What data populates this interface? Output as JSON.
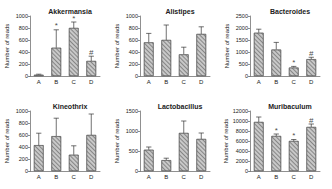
{
  "chart_data": [
    {
      "type": "bar",
      "title": "Akkermansia",
      "ylabel": "Number of reads",
      "categories": [
        "A",
        "B",
        "C",
        "D"
      ],
      "values": [
        20,
        470,
        800,
        250
      ],
      "errors": [
        10,
        300,
        100,
        80
      ],
      "annotations": [
        null,
        "*",
        "*",
        "#"
      ],
      "color": "#c8c8c8",
      "ylim": [
        0,
        1000
      ],
      "yticks": [
        0,
        200,
        400,
        600,
        800,
        1000
      ]
    },
    {
      "type": "bar",
      "title": "Alistipes",
      "ylabel": "Number of reads",
      "categories": [
        "A",
        "B",
        "C",
        "D"
      ],
      "values": [
        560,
        600,
        360,
        700
      ],
      "errors": [
        150,
        250,
        120,
        120
      ],
      "annotations": [
        null,
        null,
        null,
        null
      ],
      "color": "#c8c8c8",
      "ylim": [
        0,
        1000
      ],
      "yticks": [
        0,
        200,
        400,
        600,
        800,
        1000
      ]
    },
    {
      "type": "bar",
      "title": "Bacteroides",
      "ylabel": "Number of reads",
      "categories": [
        "A",
        "B",
        "C",
        "D"
      ],
      "values": [
        1800,
        1100,
        350,
        700
      ],
      "errors": [
        150,
        300,
        50,
        80
      ],
      "annotations": [
        null,
        null,
        "*",
        "#"
      ],
      "color": "#c8c8c8",
      "ylim": [
        0,
        2500
      ],
      "yticks": [
        0,
        500,
        1000,
        1500,
        2000,
        2500
      ]
    },
    {
      "type": "bar",
      "title": "Kineothrix",
      "ylabel": "Number of reads",
      "categories": [
        "A",
        "B",
        "C",
        "D"
      ],
      "values": [
        430,
        580,
        270,
        600
      ],
      "errors": [
        200,
        300,
        150,
        350
      ],
      "annotations": [
        null,
        null,
        null,
        null
      ],
      "color": "#c8c8c8",
      "ylim": [
        0,
        1000
      ],
      "yticks": [
        0,
        200,
        400,
        600,
        800,
        1000
      ]
    },
    {
      "type": "bar",
      "title": "Lactobacillus",
      "ylabel": "Number of reads",
      "categories": [
        "A",
        "B",
        "C",
        "D"
      ],
      "values": [
        530,
        270,
        950,
        800
      ],
      "errors": [
        70,
        50,
        300,
        150
      ],
      "annotations": [
        null,
        null,
        null,
        null
      ],
      "color": "#c8c8c8",
      "ylim": [
        0,
        1500
      ],
      "yticks": [
        0,
        500,
        1000,
        1500
      ]
    },
    {
      "type": "bar",
      "title": "Muribaculum",
      "ylabel": "Number of reads",
      "categories": [
        "A",
        "B",
        "C",
        "D"
      ],
      "values": [
        9800,
        7000,
        6000,
        8800
      ],
      "errors": [
        1000,
        400,
        300,
        600
      ],
      "annotations": [
        null,
        "*",
        "*",
        "#"
      ],
      "color": "#c8c8c8",
      "ylim": [
        0,
        12000
      ],
      "yticks": [
        0,
        2000,
        4000,
        6000,
        8000,
        10000,
        12000
      ]
    }
  ]
}
